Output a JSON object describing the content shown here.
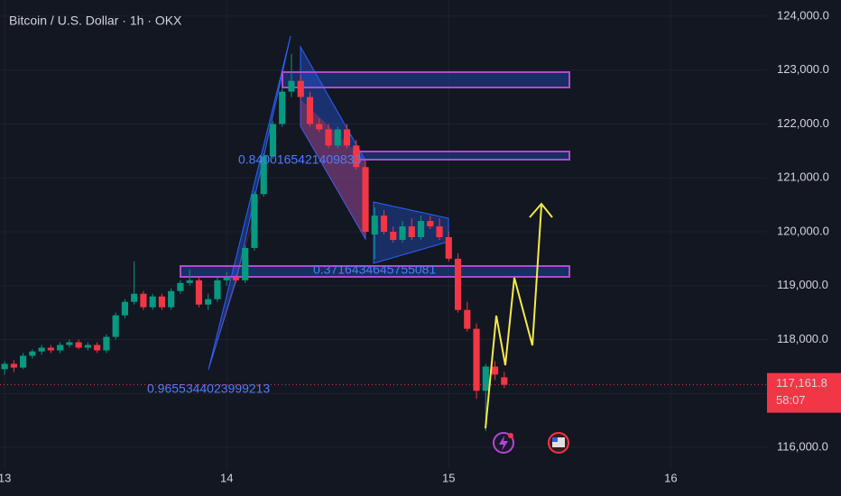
{
  "chart_data": {
    "type": "candlestick",
    "title": "Bitcoin / U.S. Dollar · 1h · OKX",
    "x": [
      0,
      1,
      2,
      3,
      4,
      5,
      6,
      7,
      8,
      9,
      10,
      11,
      12,
      13,
      14,
      15,
      16,
      17,
      18,
      19,
      20,
      21,
      22,
      23,
      24,
      25,
      26,
      27,
      28,
      29,
      30,
      31,
      32,
      33,
      34,
      35,
      36,
      37,
      38,
      39,
      40,
      41,
      42,
      43,
      44,
      45,
      46,
      47,
      48,
      49,
      50,
      51,
      52,
      53,
      54
    ],
    "open": [
      117450,
      117550,
      117480,
      117700,
      117780,
      117850,
      117800,
      117900,
      117950,
      117850,
      117900,
      117800,
      118050,
      118450,
      118700,
      118850,
      118600,
      118800,
      118600,
      118900,
      119050,
      119100,
      118650,
      118750,
      119100,
      119150,
      119100,
      119700,
      120700,
      121400,
      122000,
      122600,
      122800,
      122500,
      122000,
      121900,
      121600,
      121900,
      121600,
      121200,
      119950,
      120300,
      120000,
      119850,
      120100,
      119900,
      120200,
      120100,
      119900,
      119500,
      118550,
      118200,
      117050,
      117500,
      117300
    ],
    "high": [
      117600,
      117620,
      117750,
      117820,
      117900,
      117900,
      117950,
      118000,
      118000,
      117950,
      117950,
      118100,
      118500,
      118750,
      119450,
      118900,
      118850,
      118850,
      118950,
      119100,
      119300,
      119150,
      118850,
      119150,
      119250,
      119200,
      119750,
      120750,
      121450,
      122050,
      122650,
      123300,
      122900,
      122600,
      122100,
      122000,
      121950,
      122000,
      121700,
      121300,
      120450,
      120400,
      120100,
      120200,
      120250,
      120300,
      120300,
      120250,
      120000,
      119600,
      118700,
      118300,
      117550,
      117600,
      117400
    ],
    "low": [
      117350,
      117400,
      117450,
      117650,
      117720,
      117750,
      117750,
      117850,
      117820,
      117800,
      117750,
      117750,
      118000,
      118400,
      118650,
      118550,
      118550,
      118550,
      118550,
      118850,
      119000,
      118600,
      118550,
      118700,
      119000,
      119050,
      119050,
      119650,
      120650,
      121350,
      121950,
      122500,
      122450,
      121950,
      121850,
      121550,
      121550,
      121550,
      121150,
      119950,
      119500,
      119950,
      119800,
      119800,
      119850,
      119850,
      120050,
      119850,
      119450,
      118500,
      118150,
      116900,
      116300,
      117250,
      117100
    ],
    "close": [
      117550,
      117480,
      117700,
      117780,
      117850,
      117800,
      117900,
      117950,
      117850,
      117900,
      117800,
      118050,
      118450,
      118700,
      118850,
      118600,
      118800,
      118600,
      118900,
      119050,
      119100,
      118650,
      118750,
      119100,
      119150,
      119100,
      119700,
      120700,
      121400,
      122000,
      122600,
      122800,
      122500,
      122000,
      121900,
      121600,
      121900,
      121600,
      121200,
      120000,
      120300,
      120000,
      119850,
      120100,
      119900,
      120200,
      120100,
      119900,
      119500,
      118550,
      118200,
      117050,
      117500,
      117350,
      117162
    ],
    "up_color": "#089981",
    "down_color": "#f23645",
    "xlim": [
      -0.5,
      82.4
    ],
    "xticks": [
      {
        "value": 0,
        "label": "13"
      },
      {
        "value": 24,
        "label": "14"
      },
      {
        "value": 48,
        "label": "15"
      },
      {
        "value": 72,
        "label": "16"
      }
    ],
    "ylim": [
      115600,
      124300
    ],
    "yticks": [
      {
        "value": 116000,
        "label": "116,000.0"
      },
      {
        "value": 117000,
        "label": "117,000.0"
      },
      {
        "value": 118000,
        "label": "118,000.0"
      },
      {
        "value": 119000,
        "label": "119,000.0"
      },
      {
        "value": 120000,
        "label": "120,000.0"
      },
      {
        "value": 121000,
        "label": "121,000.0"
      },
      {
        "value": 122000,
        "label": "122,000.0"
      },
      {
        "value": 123000,
        "label": "123,000.0"
      },
      {
        "value": 124000,
        "label": "124,000.0"
      }
    ],
    "grid": true,
    "last_price": {
      "value": 117161.8,
      "label": "117,161.8"
    },
    "countdown": "58:07",
    "annotations": [
      "0.8400165421409833",
      "0.3716434645755081",
      "0.9655344023999213"
    ]
  }
}
